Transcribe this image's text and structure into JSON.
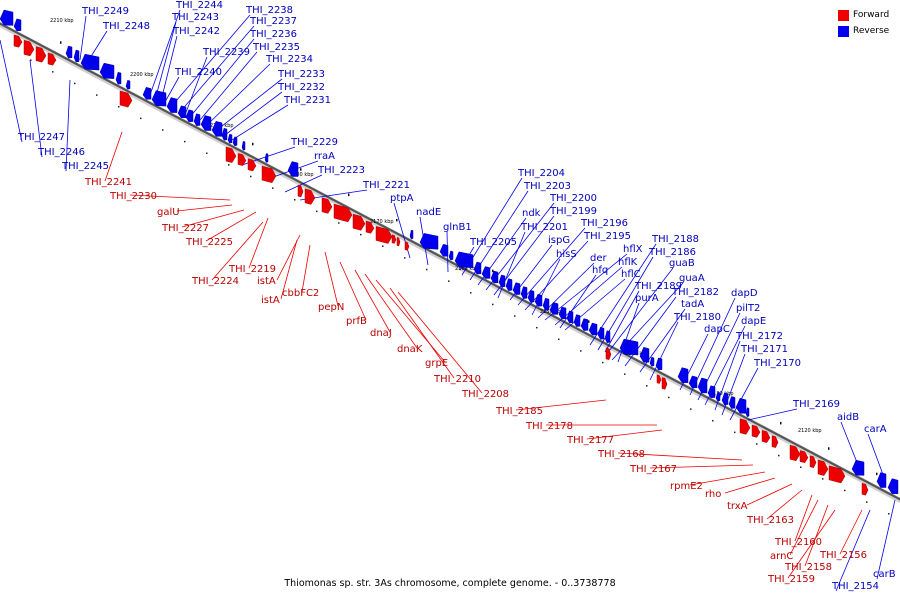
{
  "legend": [
    {
      "label": "Forward",
      "color": "#ee0000"
    },
    {
      "label": "Reverse",
      "color": "#0000ee"
    }
  ],
  "caption": "Thiomonas sp. str. 3As chromosome, complete genome. - 0..3738778",
  "ticks": [
    "2210 kbp",
    "2200 kbp",
    "2190 kbp",
    "2180 kbp",
    "2170 kbp",
    "2160 kbp",
    "2150 kbp",
    "2140 kbp",
    "2130 kbp",
    "2120 kbp"
  ],
  "reverse_labels": [
    "THI_2249",
    "THI_2248",
    "THI_2244",
    "THI_2243",
    "THI_2242",
    "THI_2238",
    "THI_2237",
    "THI_2236",
    "THI_2239",
    "THI_2235",
    "THI_2234",
    "THI_2240",
    "THI_2233",
    "THI_2232",
    "THI_2231",
    "THI_2247",
    "THI_2246",
    "THI_2245",
    "THI_2229",
    "rraA",
    "THI_2223",
    "THI_2221",
    "ptpA",
    "nadE",
    "glnB1",
    "THI_2204",
    "THI_2203",
    "ndk",
    "THI_2200",
    "THI_2199",
    "THI_2201",
    "THI_2205",
    "ispG",
    "THI_2196",
    "THI_2195",
    "hisS",
    "hflX",
    "der",
    "hflK",
    "hfq",
    "hflC",
    "THI_2188",
    "THI_2186",
    "guaB",
    "guaA",
    "THI_2189",
    "THI_2182",
    "purA",
    "tadA",
    "THI_2180",
    "dapD",
    "pilT2",
    "dapE",
    "dapC",
    "THI_2172",
    "THI_2171",
    "THI_2170",
    "THI_2169",
    "aidB",
    "carA",
    "carB",
    "THI_2154"
  ],
  "forward_labels": [
    "THI_2241",
    "THI_2230",
    "galU",
    "THI_2227",
    "THI_2225",
    "THI_2219",
    "THI_2224",
    "istA",
    "istA",
    "cbbFC2",
    "pepN",
    "prfB",
    "dnaJ",
    "dnaK",
    "grpE",
    "THI_2210",
    "THI_2208",
    "THI_2185",
    "THI_2178",
    "THI_2177",
    "THI_2168",
    "THI_2167",
    "rpmE2",
    "rho",
    "trxA",
    "THI_2163",
    "THI_2160",
    "arnC",
    "THI_2158",
    "THI_2159",
    "THI_2156"
  ]
}
